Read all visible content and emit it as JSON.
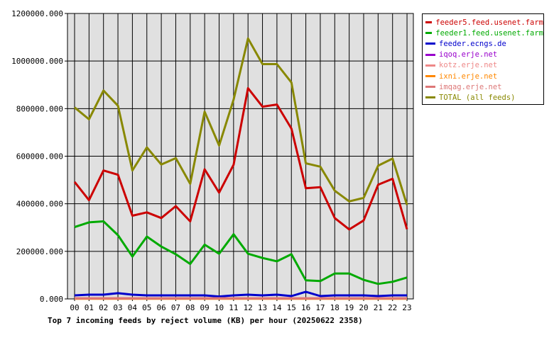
{
  "chart_data": {
    "type": "line",
    "title": "Top 7 incoming feeds by reject volume (KB) per hour (20250622 2358)",
    "categories": [
      "00",
      "01",
      "02",
      "03",
      "04",
      "05",
      "06",
      "07",
      "08",
      "09",
      "10",
      "11",
      "12",
      "13",
      "14",
      "15",
      "16",
      "17",
      "18",
      "19",
      "20",
      "21",
      "22",
      "23"
    ],
    "yticks": [
      "0.000",
      "200000.000",
      "400000.000",
      "600000.000",
      "800000.000",
      "1000000.000",
      "1200000.000"
    ],
    "ylim": [
      0,
      1200000
    ],
    "grid": true,
    "legend_position": "top-right",
    "series": [
      {
        "name": "feeder5.feed.usenet.farm",
        "color": "#cc0000",
        "values": [
          492000,
          415000,
          540000,
          522000,
          350000,
          364000,
          340000,
          390000,
          326000,
          545000,
          447000,
          564000,
          886000,
          808000,
          817000,
          716000,
          465000,
          470000,
          340000,
          292000,
          330000,
          480000,
          505000,
          293000
        ]
      },
      {
        "name": "feeder1.feed.usenet.farm",
        "color": "#00aa00",
        "values": [
          302000,
          322000,
          326000,
          268000,
          178000,
          262000,
          220000,
          188000,
          147000,
          228000,
          190000,
          272000,
          190000,
          172000,
          158000,
          188000,
          78000,
          75000,
          107000,
          107000,
          80000,
          63000,
          72000,
          90000
        ]
      },
      {
        "name": "feeder.ecngs.de",
        "color": "#0000cc",
        "values": [
          15000,
          18000,
          18000,
          24000,
          18000,
          15000,
          15000,
          15000,
          15000,
          15000,
          10000,
          15000,
          18000,
          15000,
          18000,
          12000,
          30000,
          12000,
          15000,
          15000,
          15000,
          12000,
          15000,
          15000
        ]
      },
      {
        "name": "iqoq.erje.net",
        "color": "#9900cc",
        "values": [
          2000,
          2000,
          2000,
          2000,
          2000,
          2000,
          2000,
          2000,
          2000,
          2000,
          2000,
          2000,
          2000,
          2000,
          2000,
          2000,
          2000,
          2000,
          2000,
          2000,
          2000,
          2000,
          2000,
          2000
        ]
      },
      {
        "name": "kotz.erje.net",
        "color": "#ee8888",
        "values": [
          3000,
          3000,
          3000,
          3000,
          3000,
          3000,
          3000,
          3000,
          3000,
          3000,
          3000,
          3000,
          3000,
          3000,
          3000,
          3000,
          3000,
          3000,
          3000,
          3000,
          3000,
          3000,
          3000,
          3000
        ]
      },
      {
        "name": "ixni.erje.net",
        "color": "#ff8800",
        "values": [
          1000,
          1000,
          1000,
          1000,
          1000,
          1000,
          1000,
          1000,
          1000,
          1000,
          1000,
          1000,
          1000,
          1000,
          1000,
          1000,
          1000,
          1000,
          1000,
          1000,
          1000,
          1000,
          1000,
          1000
        ]
      },
      {
        "name": "imqag.erje.net",
        "color": "#dd7777",
        "values": [
          2000,
          2000,
          2000,
          2000,
          2000,
          2000,
          2000,
          2000,
          2000,
          2000,
          2000,
          2000,
          2000,
          2000,
          2000,
          2000,
          2000,
          2000,
          2000,
          2000,
          2000,
          2000,
          2000,
          2000
        ]
      },
      {
        "name": "TOTAL (all feeds)",
        "color": "#888800",
        "values": [
          805000,
          755000,
          876000,
          812000,
          540000,
          637000,
          565000,
          592000,
          484000,
          787000,
          645000,
          838000,
          1095000,
          987000,
          987000,
          910000,
          570000,
          556000,
          455000,
          410000,
          425000,
          560000,
          590000,
          395000
        ]
      }
    ]
  }
}
